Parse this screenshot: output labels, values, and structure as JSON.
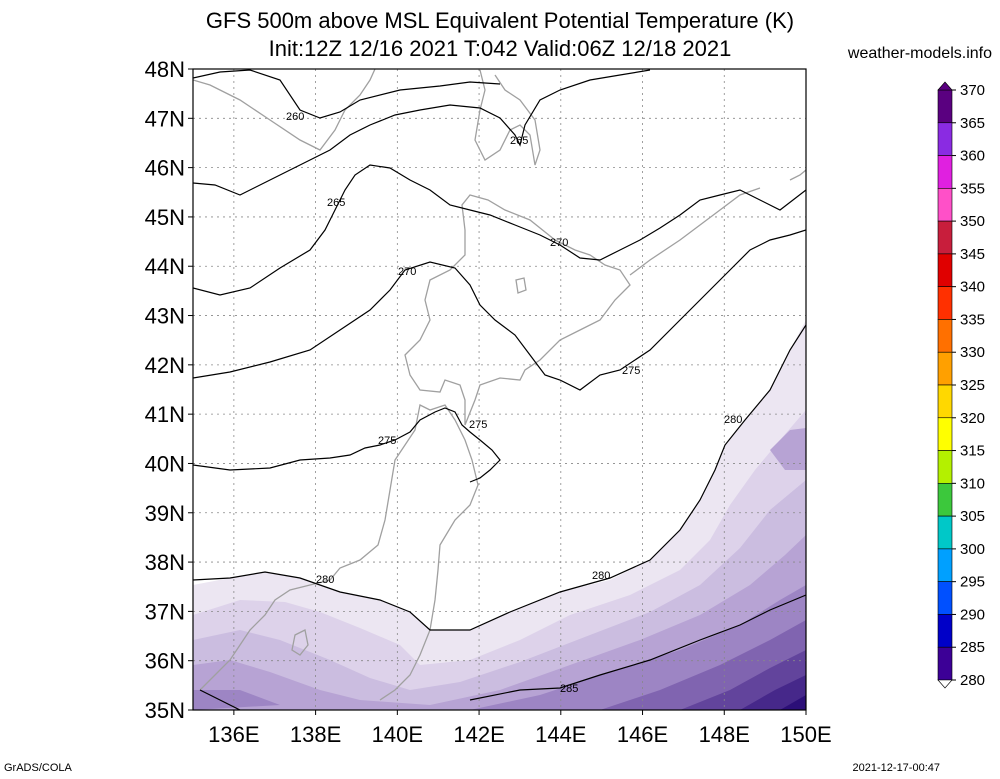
{
  "title": {
    "line1": "GFS 500m above MSL Equivalent Potential Temperature (K)",
    "line2": "Init:12Z 12/16 2021 T:042 Valid:06Z 12/18 2021"
  },
  "site": "weather-models.info",
  "footer": {
    "left": "GrADS/COLA",
    "right": "2021-12-17-00:47"
  },
  "map": {
    "lat_labels": [
      "48N",
      "47N",
      "46N",
      "45N",
      "44N",
      "43N",
      "42N",
      "41N",
      "40N",
      "39N",
      "38N",
      "37N",
      "36N",
      "35N"
    ],
    "lon_labels": [
      "136E",
      "138E",
      "140E",
      "142E",
      "144E",
      "146E",
      "148E",
      "150E"
    ],
    "contour_labels": [
      {
        "text": "260"
      },
      {
        "text": "265"
      },
      {
        "text": "265"
      },
      {
        "text": "270"
      },
      {
        "text": "270"
      },
      {
        "text": "275"
      },
      {
        "text": "275"
      },
      {
        "text": "275"
      },
      {
        "text": "280"
      },
      {
        "text": "280"
      },
      {
        "text": "280"
      },
      {
        "text": "285"
      }
    ]
  },
  "colorbar": {
    "values": [
      "370",
      "365",
      "360",
      "355",
      "350",
      "345",
      "340",
      "335",
      "330",
      "325",
      "320",
      "315",
      "310",
      "305",
      "300",
      "295",
      "290",
      "285",
      "280"
    ],
    "colors": [
      "#5a0080",
      "#8a2be2",
      "#e020e0",
      "#ff50c8",
      "#c81e3c",
      "#e00000",
      "#ff3000",
      "#ff7000",
      "#ffa000",
      "#ffd800",
      "#ffff00",
      "#b4f000",
      "#3cc83c",
      "#00c8c8",
      "#00a0ff",
      "#0050ff",
      "#0000c8",
      "#3c0096",
      "#e8e2f0"
    ]
  },
  "fill_palette": {
    "p1": "#ece6f2",
    "p2": "#ddd2ea",
    "p3": "#cbbde0",
    "p4": "#b7a3d4",
    "p5": "#9d85c4",
    "p6": "#8064b0",
    "p7": "#62449c",
    "p8": "#46288a",
    "p9": "#2c0f78"
  }
}
